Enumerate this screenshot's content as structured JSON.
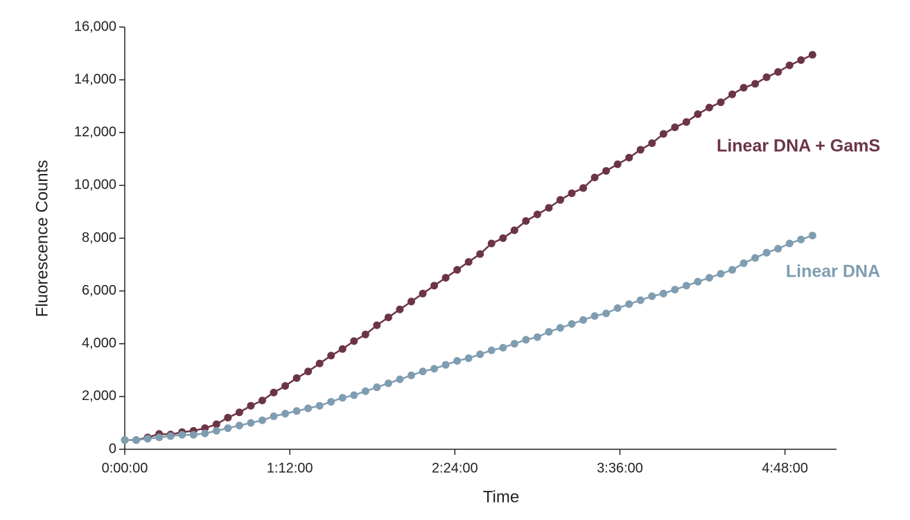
{
  "chart_data": {
    "type": "line",
    "x_label": "Time",
    "y_label": "Fluorescence Counts",
    "x": [
      0,
      5,
      10,
      15,
      20,
      25,
      30,
      35,
      40,
      45,
      50,
      55,
      60,
      65,
      70,
      75,
      80,
      85,
      90,
      95,
      100,
      105,
      110,
      115,
      120,
      125,
      130,
      135,
      140,
      145,
      150,
      155,
      160,
      165,
      170,
      175,
      180,
      185,
      190,
      195,
      200,
      205,
      210,
      215,
      220,
      225,
      230,
      235,
      240,
      245,
      250,
      255,
      260,
      265,
      270,
      275,
      280,
      285,
      290,
      295,
      300
    ],
    "series": [
      {
        "name": "Linear DNA + GamS",
        "color": "#6b3545",
        "values": [
          350,
          350,
          450,
          580,
          560,
          650,
          700,
          800,
          950,
          1200,
          1400,
          1650,
          1850,
          2150,
          2400,
          2700,
          2950,
          3250,
          3550,
          3800,
          4100,
          4350,
          4700,
          5000,
          5300,
          5600,
          5900,
          6200,
          6500,
          6800,
          7100,
          7400,
          7800,
          8000,
          8300,
          8650,
          8900,
          9150,
          9450,
          9700,
          9900,
          10300,
          10550,
          10800,
          11050,
          11350,
          11600,
          11950,
          12200,
          12400,
          12700,
          12950,
          13150,
          13450,
          13700,
          13850,
          14100,
          14300,
          14550,
          14750,
          14950
        ]
      },
      {
        "name": "Linear DNA",
        "color": "#7f9db0",
        "values": [
          350,
          350,
          400,
          450,
          500,
          550,
          550,
          600,
          700,
          800,
          900,
          1000,
          1100,
          1250,
          1350,
          1450,
          1550,
          1650,
          1800,
          1950,
          2050,
          2200,
          2350,
          2500,
          2650,
          2800,
          2950,
          3050,
          3200,
          3350,
          3450,
          3600,
          3750,
          3850,
          4000,
          4150,
          4250,
          4450,
          4600,
          4750,
          4900,
          5050,
          5150,
          5350,
          5500,
          5650,
          5800,
          5900,
          6050,
          6200,
          6350,
          6500,
          6650,
          6800,
          7050,
          7250,
          7450,
          7600,
          7800,
          7950,
          8100
        ]
      }
    ],
    "xlim": [
      0,
      310.5
    ],
    "xticks": [
      {
        "value": 0,
        "label": "0:00:00"
      },
      {
        "value": 72,
        "label": "1:12:00"
      },
      {
        "value": 144,
        "label": "2:24:00"
      },
      {
        "value": 216,
        "label": "3:36:00"
      },
      {
        "value": 288,
        "label": "4:48:00"
      }
    ],
    "ylim": [
      0,
      16000
    ],
    "yticks": [
      0,
      {
        "value": 2000,
        "label": "2,000"
      },
      {
        "value": 4000,
        "label": "4,000"
      },
      {
        "value": 6000,
        "label": "6,000"
      },
      {
        "value": 8000,
        "label": "8,000"
      },
      {
        "value": 10000,
        "label": "10,000"
      },
      {
        "value": 12000,
        "label": "12,000"
      },
      {
        "value": 14000,
        "label": "14,000"
      },
      {
        "value": 16000,
        "label": "16,000"
      }
    ],
    "grid": false
  }
}
